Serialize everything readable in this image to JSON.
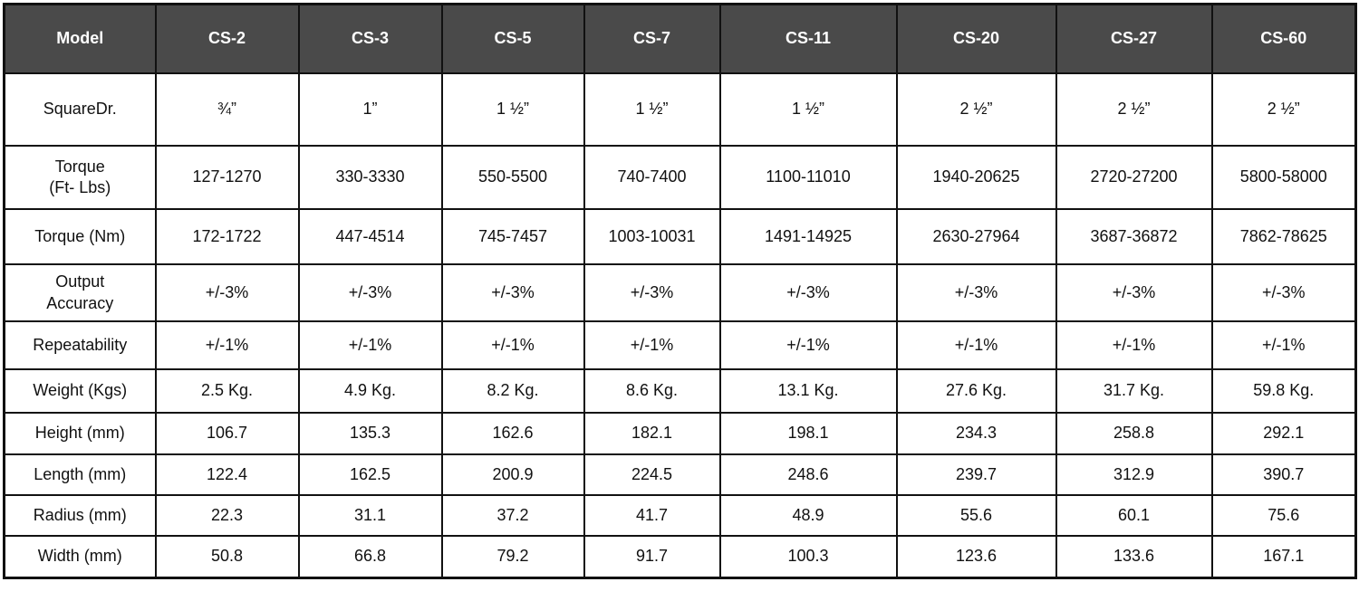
{
  "table": {
    "header": [
      "Model",
      "CS-2",
      "CS-3",
      "CS-5",
      "CS-7",
      "CS-11",
      "CS-20",
      "CS-27",
      "CS-60"
    ],
    "rows": [
      [
        "SquareDr.",
        "¾”",
        "1”",
        "1 ½”",
        "1 ½”",
        "1 ½”",
        "2 ½”",
        "2 ½”",
        "2 ½”"
      ],
      [
        "Torque\n(Ft- Lbs)",
        "127-1270",
        "330-3330",
        "550-5500",
        "740-7400",
        "1100-11010",
        "1940-20625",
        "2720-27200",
        "5800-58000"
      ],
      [
        "Torque (Nm)",
        "172-1722",
        "447-4514",
        "745-7457",
        "1003-10031",
        "1491-14925",
        "2630-27964",
        "3687-36872",
        "7862-78625"
      ],
      [
        "Output\nAccuracy",
        "+/-3%",
        "+/-3%",
        "+/-3%",
        "+/-3%",
        "+/-3%",
        "+/-3%",
        "+/-3%",
        "+/-3%"
      ],
      [
        "Repeatability",
        "+/-1%",
        "+/-1%",
        "+/-1%",
        "+/-1%",
        "+/-1%",
        "+/-1%",
        "+/-1%",
        "+/-1%"
      ],
      [
        "Weight (Kgs)",
        "2.5 Kg.",
        "4.9 Kg.",
        "8.2 Kg.",
        "8.6 Kg.",
        "13.1 Kg.",
        "27.6 Kg.",
        "31.7 Kg.",
        "59.8 Kg."
      ],
      [
        "Height (mm)",
        "106.7",
        "135.3",
        "162.6",
        "182.1",
        "198.1",
        "234.3",
        "258.8",
        "292.1"
      ],
      [
        "Length (mm)",
        "122.4",
        "162.5",
        "200.9",
        "224.5",
        "248.6",
        "239.7",
        "312.9",
        "390.7"
      ],
      [
        "Radius (mm)",
        "22.3",
        "31.1",
        "37.2",
        "41.7",
        "48.9",
        "55.6",
        "60.1",
        "75.6"
      ],
      [
        "Width (mm)",
        "50.8",
        "66.8",
        "79.2",
        "91.7",
        "100.3",
        "123.6",
        "133.6",
        "167.1"
      ]
    ]
  }
}
